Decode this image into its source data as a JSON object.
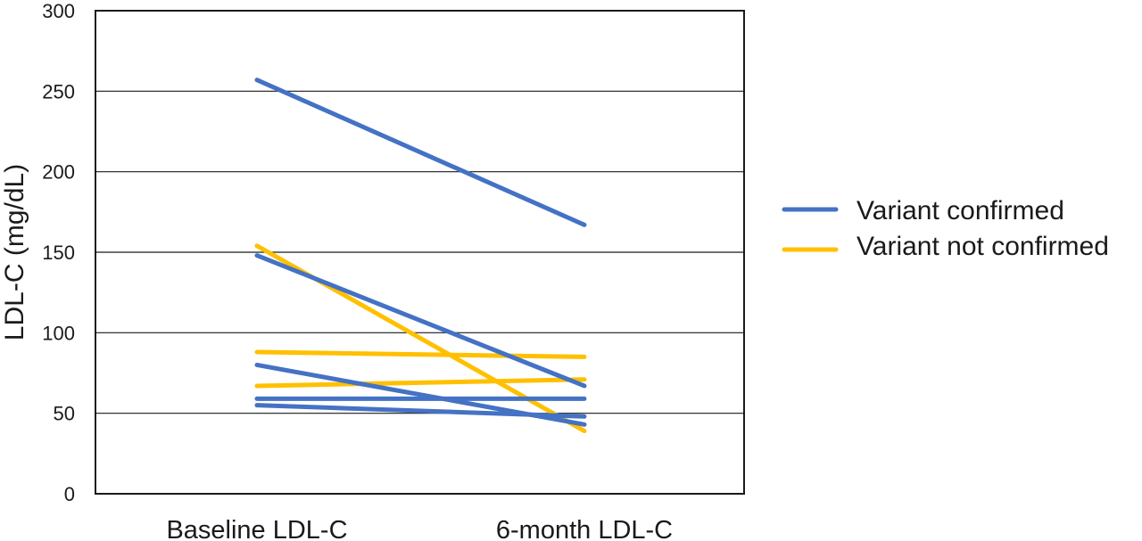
{
  "chart_data": {
    "type": "line",
    "categories": [
      "Baseline LDL-C",
      "6-month LDL-C"
    ],
    "ylabel": "LDL-C (mg/dL)",
    "ylim": [
      0,
      300
    ],
    "yticks": [
      0,
      50,
      100,
      150,
      200,
      250,
      300
    ],
    "grid": true,
    "legend_position": "right",
    "groups": [
      {
        "name": "Variant confirmed",
        "color": "#4472c4"
      },
      {
        "name": "Variant not confirmed",
        "color": "#ffc000"
      }
    ],
    "series": [
      {
        "group": 1,
        "values": [
          154,
          39
        ]
      },
      {
        "group": 1,
        "values": [
          88,
          85
        ]
      },
      {
        "group": 1,
        "values": [
          67,
          71
        ]
      },
      {
        "group": 0,
        "values": [
          257,
          167
        ]
      },
      {
        "group": 0,
        "values": [
          148,
          67
        ]
      },
      {
        "group": 0,
        "values": [
          80,
          43
        ]
      },
      {
        "group": 0,
        "values": [
          59,
          59
        ]
      },
      {
        "group": 0,
        "values": [
          55,
          48
        ]
      }
    ]
  }
}
